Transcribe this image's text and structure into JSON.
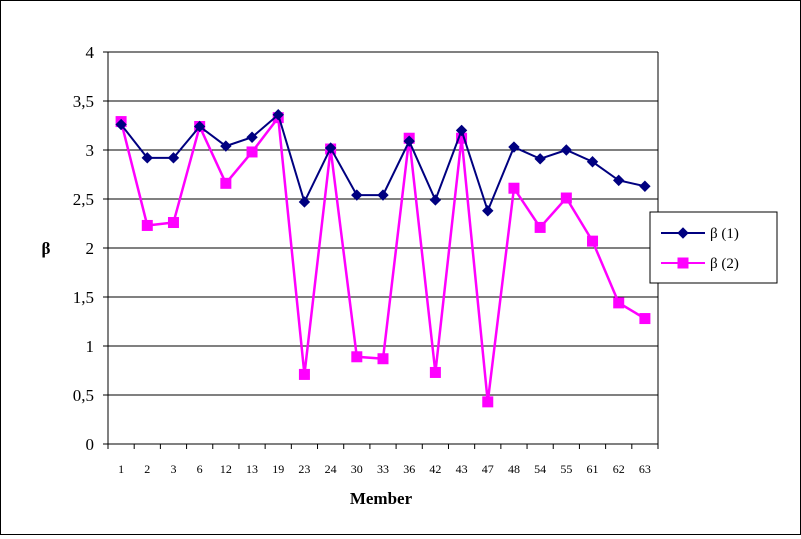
{
  "chart_data": {
    "type": "line",
    "xlabel": "Member",
    "ylabel": "β",
    "ylim": [
      0,
      4
    ],
    "yticks": [
      "0",
      "0,5",
      "1",
      "1,5",
      "2",
      "2,5",
      "3",
      "3,5",
      "4"
    ],
    "categories": [
      "1",
      "2",
      "3",
      "6",
      "12",
      "13",
      "19",
      "23",
      "24",
      "30",
      "33",
      "36",
      "42",
      "43",
      "47",
      "48",
      "54",
      "55",
      "61",
      "62",
      "63"
    ],
    "grid": "horizontal",
    "legend_position": "right",
    "series": [
      {
        "name": "β (1)",
        "color": "#000080",
        "marker": "diamond",
        "values": [
          3.26,
          2.92,
          2.92,
          3.24,
          3.04,
          3.13,
          3.36,
          2.47,
          3.02,
          2.54,
          2.54,
          3.09,
          2.49,
          3.2,
          2.38,
          3.03,
          2.91,
          3.0,
          2.88,
          2.69,
          2.63
        ]
      },
      {
        "name": "β (2)",
        "color": "#FF00FF",
        "marker": "square",
        "values": [
          3.29,
          2.23,
          2.26,
          3.24,
          2.66,
          2.98,
          3.33,
          0.71,
          3.01,
          0.89,
          0.87,
          3.12,
          0.73,
          3.12,
          0.43,
          2.61,
          2.21,
          2.51,
          2.07,
          1.44,
          1.28
        ]
      }
    ]
  }
}
